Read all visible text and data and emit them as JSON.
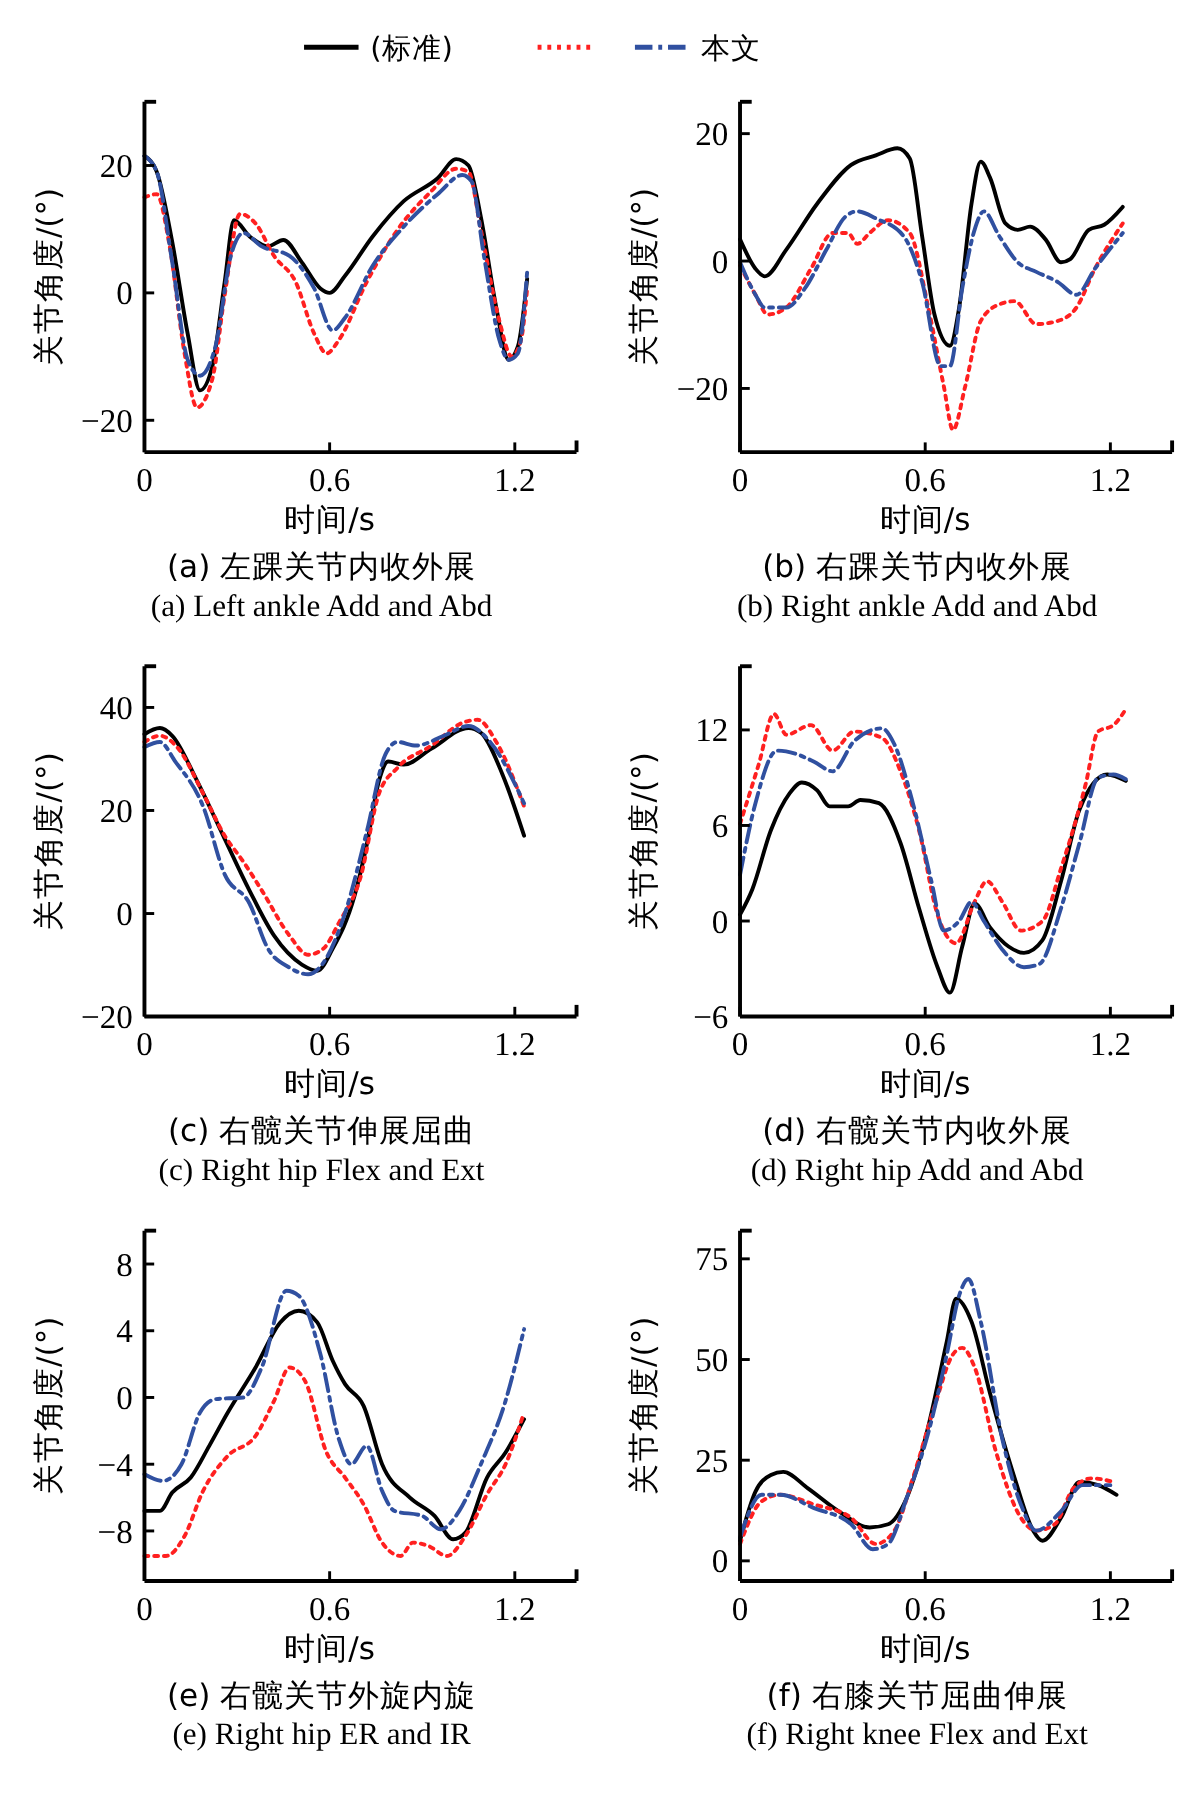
{
  "chart_data": [
    {
      "type": "line",
      "title": "(a) 左踝关节内收外展",
      "subtitle": "(a) Left ankle Add and Abd",
      "xlabel": "时间/s",
      "ylabel": "关节角度/(°)",
      "xlim": [
        0,
        1.4
      ],
      "xticks": [
        0,
        0.6,
        1.2
      ],
      "ylim": [
        -25,
        30
      ],
      "yticks": [
        -20,
        0,
        20
      ],
      "legend": "top",
      "grid": false,
      "series": [
        {
          "name": "(标准)",
          "color": "#000000",
          "line_style": "solid",
          "x": [
            0,
            0.04,
            0.09,
            0.14,
            0.18,
            0.22,
            0.26,
            0.29,
            0.34,
            0.4,
            0.45,
            0.51,
            0.57,
            0.6,
            0.65,
            0.74,
            0.84,
            0.95,
            1.01,
            1.05,
            1.09,
            1.14,
            1.18,
            1.21,
            1.24
          ],
          "values": [
            21.5,
            19,
            8,
            -6.4,
            -15.3,
            -11.5,
            1.7,
            11.4,
            8.9,
            7.3,
            8.3,
            4.8,
            0.7,
            0,
            2.7,
            8.9,
            14.4,
            18,
            21,
            20,
            11.9,
            -2.3,
            -10.5,
            -8.4,
            2.2
          ]
        },
        {
          "color": "#ff2020",
          "line_style": "dotted",
          "x": [
            0,
            0.04,
            0.08,
            0.13,
            0.17,
            0.22,
            0.26,
            0.31,
            0.36,
            0.42,
            0.49,
            0.55,
            0.59,
            0.63,
            0.72,
            0.82,
            0.93,
            1.01,
            1.05,
            1.09,
            1.15,
            1.19,
            1.22,
            1.24
          ],
          "values": [
            15,
            15.5,
            7.8,
            -9.5,
            -18,
            -13.5,
            -0.3,
            12.4,
            10.9,
            5.8,
            1.7,
            -6.4,
            -9.5,
            -7.4,
            1.7,
            9.9,
            16,
            19.5,
            19,
            9.9,
            -4.4,
            -10,
            -7.4,
            0.7
          ]
        },
        {
          "name": "本文",
          "color": "#3050a0",
          "line_style": "dashed",
          "x": [
            0,
            0.04,
            0.09,
            0.14,
            0.18,
            0.23,
            0.28,
            0.32,
            0.38,
            0.47,
            0.55,
            0.61,
            0.65,
            0.74,
            0.84,
            0.95,
            1.03,
            1.06,
            1.1,
            1.15,
            1.18,
            1.21,
            1.24
          ],
          "values": [
            21.5,
            19,
            4.8,
            -10.5,
            -13,
            -8.4,
            5.8,
            9.4,
            7.3,
            5.8,
            0.7,
            -5.9,
            -3.9,
            4.3,
            10.4,
            15.5,
            18.5,
            17.5,
            5.8,
            -7.4,
            -10.5,
            -9.5,
            3.3
          ]
        }
      ]
    },
    {
      "type": "line",
      "title": "(b) 右踝关节内收外展",
      "subtitle": "(b) Right ankle Add and Abd",
      "xlabel": "时间/s",
      "ylabel": "关节角度/(°)",
      "xlim": [
        0,
        1.4
      ],
      "xticks": [
        0,
        0.6,
        1.2
      ],
      "ylim": [
        -30,
        25
      ],
      "yticks": [
        -20,
        0,
        20
      ],
      "grid": false,
      "series": [
        {
          "color": "#000000",
          "line_style": "solid",
          "x": [
            0,
            0.05,
            0.08,
            0.15,
            0.25,
            0.36,
            0.44,
            0.51,
            0.55,
            0.59,
            0.63,
            0.68,
            0.71,
            0.75,
            0.78,
            0.81,
            0.86,
            0.9,
            0.94,
            0.99,
            1.04,
            1.07,
            1.13,
            1.18,
            1.24
          ],
          "values": [
            3.4,
            -1.2,
            -2.4,
            1.8,
            9,
            15.1,
            16.6,
            17.7,
            16.1,
            3.9,
            -8.4,
            -13.3,
            -7.3,
            9,
            15.6,
            13.1,
            5.9,
            4.9,
            5.4,
            3.4,
            -0.2,
            0.3,
            4.9,
            5.7,
            8.5
          ]
        },
        {
          "color": "#ff2020",
          "line_style": "dotted",
          "x": [
            0,
            0.05,
            0.09,
            0.15,
            0.23,
            0.3,
            0.35,
            0.38,
            0.42,
            0.48,
            0.55,
            0.61,
            0.66,
            0.69,
            0.73,
            0.78,
            0.84,
            0.89,
            0.96,
            1.03,
            1.09,
            1.15,
            1.24
          ],
          "values": [
            -0.7,
            -5.3,
            -8.4,
            -7.3,
            -1.2,
            4.4,
            4.4,
            2.7,
            4.4,
            6.4,
            4.4,
            -7.3,
            -19.6,
            -26.5,
            -19.6,
            -9.4,
            -6.8,
            -6.3,
            -9.9,
            -9.4,
            -7.3,
            -1.2,
            5.9
          ]
        },
        {
          "color": "#3050a0",
          "line_style": "dashed",
          "x": [
            0,
            0.05,
            0.08,
            0.15,
            0.21,
            0.28,
            0.34,
            0.38,
            0.44,
            0.53,
            0.59,
            0.65,
            0.68,
            0.72,
            0.76,
            0.79,
            0.84,
            0.9,
            0.96,
            1.03,
            1.09,
            1.15,
            1.24
          ],
          "values": [
            -0.2,
            -5.3,
            -7.3,
            -7.3,
            -4.3,
            1.8,
            6.9,
            7.8,
            6.7,
            3.9,
            -3.3,
            -16.5,
            -16.5,
            -4.3,
            4.9,
            7.8,
            3.9,
            -0.2,
            -1.7,
            -3.3,
            -5.3,
            -1.2,
            4.4
          ]
        }
      ]
    },
    {
      "type": "line",
      "title": "(c) 右髋关节伸展屈曲",
      "subtitle": "(c) Right hip Flex and Ext",
      "xlabel": "时间/s",
      "ylabel": "关节角度/(°)",
      "xlim": [
        0,
        1.4
      ],
      "xticks": [
        0,
        0.6,
        1.2
      ],
      "ylim": [
        -20,
        48
      ],
      "yticks": [
        -20,
        0,
        20,
        40
      ],
      "grid": false,
      "series": [
        {
          "color": "#000000",
          "line_style": "solid",
          "x": [
            0,
            0.05,
            0.09,
            0.17,
            0.26,
            0.34,
            0.42,
            0.51,
            0.56,
            0.61,
            0.68,
            0.72,
            0.76,
            0.79,
            0.84,
            0.93,
            1.05,
            1.09,
            1.16,
            1.23
          ],
          "values": [
            34.8,
            36,
            34.5,
            25.8,
            14.5,
            4.5,
            -4.3,
            -9.9,
            -11.1,
            -6.8,
            3.3,
            13.3,
            25.8,
            29.5,
            28.9,
            32,
            36,
            35.1,
            27,
            15.1
          ]
        },
        {
          "color": "#ff2020",
          "line_style": "dotted",
          "x": [
            0,
            0.05,
            0.11,
            0.19,
            0.26,
            0.32,
            0.38,
            0.47,
            0.53,
            0.58,
            0.63,
            0.7,
            0.76,
            0.82,
            0.93,
            1.03,
            1.08,
            1.14,
            1.23
          ],
          "values": [
            33.3,
            34.5,
            32,
            23.3,
            15.1,
            10.1,
            4.5,
            -4.3,
            -8,
            -6.8,
            -1.8,
            7,
            23.3,
            28.3,
            32.6,
            37,
            37.6,
            33.3,
            20.8
          ]
        },
        {
          "color": "#3050a0",
          "line_style": "dashed",
          "x": [
            0,
            0.05,
            0.1,
            0.19,
            0.26,
            0.34,
            0.4,
            0.47,
            0.53,
            0.59,
            0.65,
            0.72,
            0.78,
            0.82,
            0.88,
            0.97,
            1.05,
            1.12,
            1.23
          ],
          "values": [
            32.3,
            33.3,
            29.5,
            20.8,
            7.6,
            2,
            -6.8,
            -10.5,
            -11.8,
            -8.6,
            0.1,
            15.8,
            30.8,
            33.3,
            32.6,
            34.5,
            36.4,
            33.3,
            21.4
          ]
        }
      ]
    },
    {
      "type": "line",
      "title": "(d) 右髋关节内收外展",
      "subtitle": "(d) Right hip Add and Abd",
      "xlabel": "时间/s",
      "ylabel": "关节角度/(°)",
      "xlim": [
        0,
        1.4
      ],
      "xticks": [
        0,
        0.6,
        1.2
      ],
      "ylim": [
        -6,
        16
      ],
      "yticks": [
        -6,
        0,
        6,
        12
      ],
      "grid": false,
      "series": [
        {
          "color": "#000000",
          "line_style": "solid",
          "x": [
            0,
            0.04,
            0.1,
            0.16,
            0.2,
            0.25,
            0.29,
            0.35,
            0.39,
            0.45,
            0.52,
            0.58,
            0.64,
            0.68,
            0.72,
            0.76,
            0.81,
            0.87,
            0.92,
            0.98,
            1.04,
            1.1,
            1.19,
            1.25
          ],
          "values": [
            0.4,
            2,
            5.7,
            8,
            8.7,
            8.2,
            7.2,
            7.2,
            7.6,
            7.4,
            4.9,
            0.8,
            -2.9,
            -4.5,
            -1.6,
            1.1,
            -0.4,
            -1.6,
            -2,
            -1.2,
            2.5,
            7,
            9.2,
            8.8
          ]
        },
        {
          "color": "#ff2020",
          "line_style": "dotted",
          "x": [
            0,
            0.06,
            0.11,
            0.15,
            0.23,
            0.3,
            0.37,
            0.46,
            0.52,
            0.58,
            0.64,
            0.7,
            0.76,
            0.8,
            0.85,
            0.91,
            0.98,
            1.04,
            1.12,
            1.16,
            1.21,
            1.25
          ],
          "values": [
            6.1,
            9.8,
            13,
            11.7,
            12.3,
            10.7,
            11.9,
            11.5,
            9.4,
            5.7,
            0.4,
            -1.4,
            1.2,
            2.5,
            1.2,
            -0.6,
            0,
            3.3,
            8.6,
            11.9,
            12.3,
            13.3
          ]
        },
        {
          "color": "#3050a0",
          "line_style": "dashed",
          "x": [
            0,
            0.05,
            0.12,
            0.18,
            0.24,
            0.3,
            0.37,
            0.46,
            0.5,
            0.56,
            0.62,
            0.66,
            0.71,
            0.75,
            0.79,
            0.85,
            0.92,
            0.97,
            1.04,
            1.1,
            1.16,
            1.21,
            1.25
          ],
          "values": [
            2.9,
            7.4,
            10.7,
            10.5,
            10,
            9.4,
            11.3,
            12.1,
            11.1,
            7.4,
            2.5,
            -0.6,
            0,
            1.2,
            0,
            -1.8,
            -2.9,
            -2.7,
            0.8,
            4.9,
            9,
            9.2,
            8.9
          ]
        }
      ]
    },
    {
      "type": "line",
      "title": "(e) 右髋关节外旋内旋",
      "subtitle": "(e) Right hip ER and IR",
      "xlabel": "时间/s",
      "ylabel": "关节角度/(°)",
      "xlim": [
        0,
        1.4
      ],
      "xticks": [
        0,
        0.6,
        1.2
      ],
      "ylim": [
        -11,
        10
      ],
      "yticks": [
        -8,
        -4,
        0,
        4,
        8
      ],
      "grid": false,
      "series": [
        {
          "color": "#000000",
          "line_style": "solid",
          "x": [
            0,
            0.05,
            0.09,
            0.15,
            0.21,
            0.27,
            0.36,
            0.44,
            0.5,
            0.56,
            0.61,
            0.65,
            0.71,
            0.77,
            0.86,
            0.94,
            1,
            1.04,
            1.11,
            1.17,
            1.23
          ],
          "values": [
            -6.8,
            -6.8,
            -5.7,
            -4.8,
            -2.9,
            -0.9,
            1.8,
            4.5,
            5.2,
            4.5,
            2.2,
            0.8,
            -0.5,
            -4,
            -6,
            -7.1,
            -8.5,
            -8.1,
            -4.8,
            -3.3,
            -1.3
          ]
        },
        {
          "color": "#ff2020",
          "line_style": "dotted",
          "x": [
            0,
            0.07,
            0.13,
            0.19,
            0.27,
            0.36,
            0.42,
            0.47,
            0.52,
            0.59,
            0.65,
            0.71,
            0.77,
            0.83,
            0.87,
            0.92,
            0.98,
            1.04,
            1.11,
            1.17,
            1.23
          ],
          "values": [
            -9.5,
            -9.5,
            -8.3,
            -5.6,
            -3.5,
            -2.3,
            -0.2,
            1.8,
            1,
            -3.3,
            -4.8,
            -6.4,
            -8.7,
            -9.5,
            -8.7,
            -8.9,
            -9.5,
            -8.3,
            -5.8,
            -4,
            -0.9
          ]
        },
        {
          "color": "#3050a0",
          "line_style": "dashed",
          "x": [
            0,
            0.06,
            0.12,
            0.18,
            0.23,
            0.32,
            0.38,
            0.46,
            0.5,
            0.57,
            0.63,
            0.67,
            0.72,
            0.77,
            0.81,
            0.9,
            0.96,
            1.02,
            1.09,
            1.17,
            1.23
          ],
          "values": [
            -4.6,
            -5,
            -4,
            -0.9,
            -0.1,
            0,
            1.8,
            6.4,
            6.1,
            2.6,
            -2.5,
            -4,
            -2.9,
            -5.6,
            -6.8,
            -7.1,
            -7.9,
            -6.8,
            -4,
            -0.2,
            4.1
          ]
        }
      ]
    },
    {
      "type": "line",
      "title": "(f) 右膝关节屈曲伸展",
      "subtitle": "(f) Right knee Flex and Ext",
      "xlabel": "时间/s",
      "ylabel": "关节角度/(°)",
      "xlim": [
        0,
        1.4
      ],
      "xticks": [
        0,
        0.6,
        1.2
      ],
      "ylim": [
        -5,
        82
      ],
      "yticks": [
        0,
        25,
        50,
        75
      ],
      "grid": false,
      "series": [
        {
          "color": "#000000",
          "line_style": "solid",
          "x": [
            0,
            0.05,
            0.1,
            0.14,
            0.22,
            0.32,
            0.42,
            0.48,
            0.54,
            0.61,
            0.67,
            0.7,
            0.75,
            0.81,
            0.89,
            0.95,
            0.98,
            1.04,
            1.1,
            1.16,
            1.22
          ],
          "values": [
            5,
            17.2,
            21.3,
            22.1,
            18,
            12.3,
            8.3,
            9.1,
            15.6,
            33.4,
            54.5,
            65.1,
            59.4,
            41.6,
            20.5,
            7.5,
            5,
            10.7,
            19.6,
            18.8,
            16.4
          ]
        },
        {
          "color": "#ff2020",
          "line_style": "dotted",
          "x": [
            0,
            0.07,
            0.13,
            0.24,
            0.36,
            0.44,
            0.5,
            0.56,
            0.63,
            0.69,
            0.72,
            0.76,
            0.83,
            0.91,
            0.96,
            1.02,
            1.08,
            1.14,
            1.21
          ],
          "values": [
            4.2,
            14.8,
            16.4,
            14,
            10.7,
            4.2,
            7.5,
            20.5,
            38.3,
            51.3,
            52.9,
            48.1,
            26.9,
            10.7,
            7.5,
            9.1,
            18,
            20.5,
            19.6
          ]
        },
        {
          "color": "#3050a0",
          "line_style": "dashed",
          "x": [
            0,
            0.07,
            0.13,
            0.24,
            0.36,
            0.43,
            0.48,
            0.54,
            0.61,
            0.67,
            0.71,
            0.74,
            0.78,
            0.85,
            0.91,
            0.96,
            1.04,
            1.11,
            1.2
          ],
          "values": [
            5.8,
            16.4,
            16.4,
            13.1,
            9.1,
            2.9,
            4.2,
            15.6,
            31.8,
            51.3,
            65.9,
            70,
            59.4,
            30.2,
            14,
            7.5,
            12.3,
            18.8,
            18.8
          ]
        }
      ]
    }
  ]
}
